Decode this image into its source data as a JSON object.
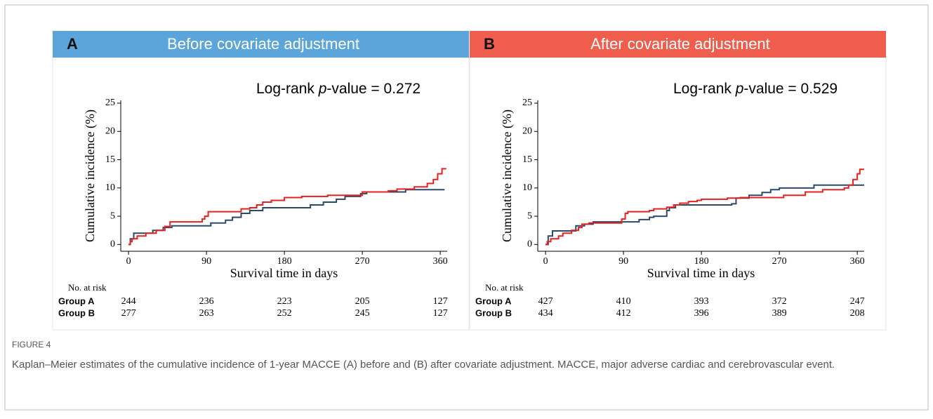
{
  "figure_label": "FIGURE 4",
  "caption": "Kaplan–Meier estimates of the cumulative incidence of 1-year MACCE (A) before and (B) after covariate adjustment. MACCE, major adverse cardiac and cerebrovascular event.",
  "chart_data": [
    {
      "type": "line",
      "step": "post",
      "panel": "A",
      "title": "Before covariate adjustment",
      "header_color": "#5ba5da",
      "annotation": {
        "prefix": "Log-rank ",
        "italic": "p",
        "suffix": "-value = 0.272"
      },
      "x_label": "Survival time in days",
      "y_label": "Cumulative incidence (%)",
      "xlim": [
        -9,
        368
      ],
      "ylim": [
        -1.2,
        25.5
      ],
      "xticks": [
        0,
        90,
        180,
        270,
        360
      ],
      "yticks": [
        0,
        5,
        10,
        15,
        20,
        25
      ],
      "series": [
        {
          "color": "#2b4a6b",
          "x": [
            0,
            2,
            6,
            28,
            40,
            50,
            95,
            112,
            120,
            130,
            140,
            155,
            210,
            225,
            240,
            250,
            268,
            275,
            320,
            365
          ],
          "values": [
            0,
            1,
            2,
            2.5,
            3,
            3.3,
            3.8,
            4.3,
            4.8,
            5.5,
            6,
            6.5,
            7,
            7.5,
            8,
            8.5,
            9,
            9.3,
            9.7,
            9.7
          ]
        },
        {
          "color": "#e8201e",
          "x": [
            0,
            2,
            4,
            10,
            20,
            32,
            42,
            48,
            85,
            88,
            92,
            130,
            140,
            148,
            155,
            165,
            180,
            200,
            230,
            270,
            300,
            310,
            330,
            345,
            352,
            357,
            362,
            367
          ],
          "values": [
            0,
            0.5,
            1,
            1.5,
            2,
            2.5,
            3.2,
            4,
            4.5,
            5,
            5.8,
            6.3,
            6.5,
            7,
            7.5,
            7.8,
            8.3,
            8.5,
            8.7,
            9.3,
            9.5,
            9.8,
            10.2,
            10.8,
            11.5,
            12.5,
            13.4,
            13.4
          ]
        }
      ],
      "risk_table": {
        "label": "No. at risk",
        "rows": [
          {
            "name": "Group A",
            "values": [
              244,
              236,
              223,
              205,
              127
            ]
          },
          {
            "name": "Group B",
            "values": [
              277,
              263,
              252,
              245,
              127
            ]
          }
        ]
      }
    },
    {
      "type": "line",
      "step": "post",
      "panel": "B",
      "title": "After covariate adjustment",
      "header_color": "#ef5e4d",
      "annotation": {
        "prefix": "Log-rank ",
        "italic": "p",
        "suffix": "-value = 0.529"
      },
      "x_label": "Survival time in days",
      "y_label": "Cumulative incidence (%)",
      "xlim": [
        -9,
        368
      ],
      "ylim": [
        -1.2,
        25.5
      ],
      "xticks": [
        0,
        90,
        180,
        270,
        360
      ],
      "yticks": [
        0,
        5,
        10,
        15,
        20,
        25
      ],
      "series": [
        {
          "color": "#2b4a6b",
          "x": [
            0,
            3,
            8,
            35,
            45,
            55,
            108,
            120,
            125,
            140,
            143,
            150,
            215,
            220,
            235,
            250,
            260,
            270,
            310,
            368
          ],
          "values": [
            0,
            1.5,
            2.4,
            3.3,
            3.6,
            4,
            4.4,
            4.8,
            5,
            6,
            6.5,
            7,
            7.2,
            8.2,
            8.7,
            9.2,
            9.7,
            10,
            10.5,
            10.5
          ]
        },
        {
          "color": "#e8201e",
          "x": [
            0,
            2,
            6,
            15,
            20,
            30,
            38,
            42,
            50,
            88,
            92,
            95,
            120,
            125,
            140,
            148,
            155,
            165,
            175,
            180,
            210,
            225,
            275,
            300,
            320,
            345,
            350,
            355,
            360,
            363,
            368
          ],
          "values": [
            0,
            0.5,
            1,
            1.5,
            2,
            2.5,
            3,
            3.6,
            3.8,
            4.5,
            5.5,
            5.8,
            6,
            6.3,
            6.6,
            7,
            7.3,
            7.6,
            7.8,
            8,
            8.2,
            8.3,
            8.7,
            9.3,
            9.7,
            10,
            10.5,
            11.5,
            12.5,
            13.3,
            13.3
          ]
        }
      ],
      "risk_table": {
        "label": "No. at risk",
        "rows": [
          {
            "name": "Group A",
            "values": [
              427,
              410,
              393,
              372,
              247
            ]
          },
          {
            "name": "Group B",
            "values": [
              434,
              412,
              396,
              389,
              208
            ]
          }
        ]
      }
    }
  ]
}
